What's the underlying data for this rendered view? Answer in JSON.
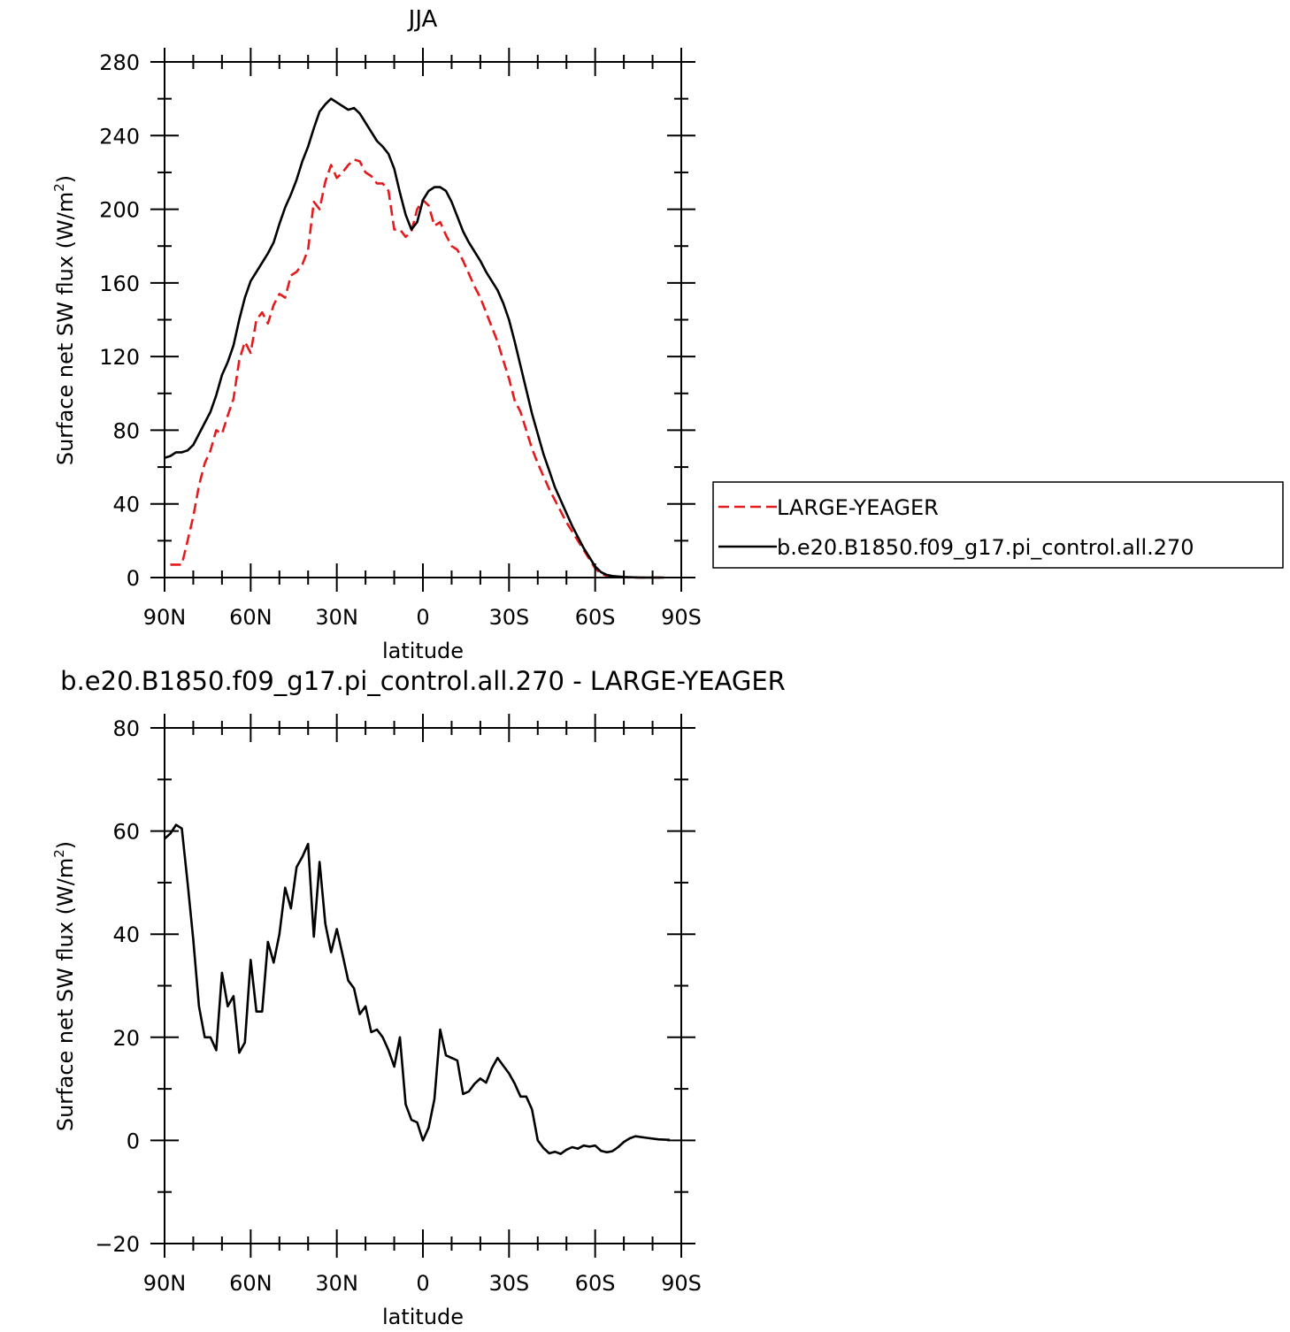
{
  "chart_data": [
    {
      "type": "line",
      "title": "JJA",
      "xlabel": "latitude",
      "ylabel": "Surface net SW flux (W/m",
      "ylabel_sup": "2",
      "ylabel_close": ")",
      "xlim": [
        -90,
        90
      ],
      "ylim": [
        0,
        280
      ],
      "x_ticks": [
        {
          "value": -90,
          "label": "90N"
        },
        {
          "value": -60,
          "label": "60N"
        },
        {
          "value": -30,
          "label": "30N"
        },
        {
          "value": 0,
          "label": "0"
        },
        {
          "value": 30,
          "label": "30S"
        },
        {
          "value": 60,
          "label": "60S"
        },
        {
          "value": 90,
          "label": "90S"
        }
      ],
      "y_ticks": [
        0,
        40,
        80,
        120,
        160,
        200,
        240,
        280
      ],
      "legend_placement": "right",
      "series": [
        {
          "name": "LARGE-YEAGER",
          "color": "#e41a1c",
          "dash": "dashed",
          "points": [
            [
              -88,
              7
            ],
            [
              -84,
              7
            ],
            [
              -82,
              20
            ],
            [
              -80,
              33
            ],
            [
              -78,
              50
            ],
            [
              -76,
              62
            ],
            [
              -74,
              69
            ],
            [
              -72,
              80
            ],
            [
              -70,
              78
            ],
            [
              -68,
              88
            ],
            [
              -66,
              97
            ],
            [
              -64,
              118
            ],
            [
              -62,
              128
            ],
            [
              -60,
              122
            ],
            [
              -58,
              140
            ],
            [
              -56,
              144
            ],
            [
              -54,
              138
            ],
            [
              -52,
              148
            ],
            [
              -50,
              154
            ],
            [
              -48,
              152
            ],
            [
              -46,
              164
            ],
            [
              -44,
              166
            ],
            [
              -42,
              170
            ],
            [
              -40,
              178
            ],
            [
              -38,
              204
            ],
            [
              -36,
              200
            ],
            [
              -34,
              215
            ],
            [
              -32,
              224
            ],
            [
              -30,
              217
            ],
            [
              -28,
              220
            ],
            [
              -26,
              224
            ],
            [
              -24,
              227
            ],
            [
              -22,
              226
            ],
            [
              -20,
              220
            ],
            [
              -18,
              218
            ],
            [
              -16,
              214
            ],
            [
              -14,
              214
            ],
            [
              -12,
              210
            ],
            [
              -10,
              189
            ],
            [
              -8,
              189
            ],
            [
              -6,
              185
            ],
            [
              -4,
              188
            ],
            [
              -2,
              200
            ],
            [
              0,
              205
            ],
            [
              2,
              202
            ],
            [
              4,
              191
            ],
            [
              6,
              193
            ],
            [
              8,
              186
            ],
            [
              10,
              180
            ],
            [
              12,
              178
            ],
            [
              14,
              172
            ],
            [
              16,
              165
            ],
            [
              18,
              158
            ],
            [
              20,
              152
            ],
            [
              22,
              144
            ],
            [
              24,
              136
            ],
            [
              26,
              128
            ],
            [
              28,
              118
            ],
            [
              30,
              108
            ],
            [
              32,
              96
            ],
            [
              34,
              90
            ],
            [
              36,
              80
            ],
            [
              38,
              70
            ],
            [
              40,
              62
            ],
            [
              42,
              55
            ],
            [
              44,
              48
            ],
            [
              46,
              42
            ],
            [
              48,
              36
            ],
            [
              50,
              30
            ],
            [
              52,
              25
            ],
            [
              54,
              20
            ],
            [
              56,
              15
            ],
            [
              58,
              10
            ],
            [
              60,
              5
            ],
            [
              62,
              2
            ],
            [
              64,
              1
            ],
            [
              68,
              0.5
            ],
            [
              72,
              0
            ],
            [
              78,
              0
            ],
            [
              84,
              0
            ]
          ]
        },
        {
          "name": "b.e20.B1850.f09_g17.pi_control.all.270",
          "color": "#000000",
          "dash": "solid",
          "points": [
            [
              -90,
              65
            ],
            [
              -88,
              66
            ],
            [
              -86,
              68
            ],
            [
              -84,
              68
            ],
            [
              -82,
              69
            ],
            [
              -80,
              72
            ],
            [
              -78,
              78
            ],
            [
              -76,
              84
            ],
            [
              -74,
              90
            ],
            [
              -72,
              99
            ],
            [
              -70,
              110
            ],
            [
              -68,
              117
            ],
            [
              -66,
              126
            ],
            [
              -64,
              140
            ],
            [
              -62,
              152
            ],
            [
              -60,
              161
            ],
            [
              -58,
              166
            ],
            [
              -56,
              171
            ],
            [
              -54,
              176
            ],
            [
              -52,
              182
            ],
            [
              -50,
              192
            ],
            [
              -48,
              201
            ],
            [
              -46,
              208
            ],
            [
              -44,
              216
            ],
            [
              -42,
              226
            ],
            [
              -40,
              234
            ],
            [
              -38,
              244
            ],
            [
              -36,
              253
            ],
            [
              -34,
              257
            ],
            [
              -32,
              260
            ],
            [
              -30,
              258
            ],
            [
              -28,
              256
            ],
            [
              -26,
              254
            ],
            [
              -24,
              255
            ],
            [
              -22,
              252
            ],
            [
              -20,
              247
            ],
            [
              -18,
              242
            ],
            [
              -16,
              237
            ],
            [
              -14,
              234
            ],
            [
              -12,
              230
            ],
            [
              -10,
              222
            ],
            [
              -8,
              209
            ],
            [
              -6,
              197
            ],
            [
              -4,
              189
            ],
            [
              -2,
              193
            ],
            [
              0,
              205
            ],
            [
              2,
              210
            ],
            [
              4,
              212
            ],
            [
              6,
              212
            ],
            [
              8,
              210
            ],
            [
              10,
              204
            ],
            [
              12,
              196
            ],
            [
              14,
              188
            ],
            [
              16,
              182
            ],
            [
              18,
              177
            ],
            [
              20,
              172
            ],
            [
              22,
              166
            ],
            [
              24,
              161
            ],
            [
              26,
              156
            ],
            [
              28,
              149
            ],
            [
              30,
              140
            ],
            [
              32,
              128
            ],
            [
              34,
              115
            ],
            [
              36,
              102
            ],
            [
              38,
              89
            ],
            [
              40,
              78
            ],
            [
              42,
              67
            ],
            [
              44,
              58
            ],
            [
              46,
              49
            ],
            [
              48,
              42
            ],
            [
              50,
              35
            ],
            [
              52,
              28
            ],
            [
              54,
              22
            ],
            [
              56,
              16
            ],
            [
              58,
              11
            ],
            [
              60,
              6
            ],
            [
              62,
              3
            ],
            [
              64,
              1.5
            ],
            [
              66,
              0.8
            ],
            [
              70,
              0.3
            ],
            [
              76,
              0
            ],
            [
              84,
              0
            ]
          ]
        }
      ]
    },
    {
      "type": "line",
      "title": "b.e20.B1850.f09_g17.pi_control.all.270 - LARGE-YEAGER",
      "xlabel": "latitude",
      "ylabel": "Surface net SW flux (W/m",
      "ylabel_sup": "2",
      "ylabel_close": ")",
      "xlim": [
        -90,
        90
      ],
      "ylim": [
        -20,
        80
      ],
      "x_ticks": [
        {
          "value": -90,
          "label": "90N"
        },
        {
          "value": -60,
          "label": "60N"
        },
        {
          "value": -30,
          "label": "30N"
        },
        {
          "value": 0,
          "label": "0"
        },
        {
          "value": 30,
          "label": "30S"
        },
        {
          "value": 60,
          "label": "60S"
        },
        {
          "value": 90,
          "label": "90S"
        }
      ],
      "y_ticks": [
        -20,
        0,
        20,
        40,
        60,
        80
      ],
      "series": [
        {
          "color": "#000000",
          "dash": "solid",
          "points": [
            [
              -90,
              58.5
            ],
            [
              -88,
              59.5
            ],
            [
              -86,
              61.2
            ],
            [
              -84,
              60.5
            ],
            [
              -82,
              50
            ],
            [
              -80,
              39
            ],
            [
              -78,
              26
            ],
            [
              -76,
              20
            ],
            [
              -74,
              20
            ],
            [
              -72,
              17.5
            ],
            [
              -70,
              32.5
            ],
            [
              -68,
              26
            ],
            [
              -66,
              28
            ],
            [
              -64,
              17
            ],
            [
              -62,
              19
            ],
            [
              -60,
              35
            ],
            [
              -58,
              25
            ],
            [
              -56,
              25
            ],
            [
              -54,
              38.5
            ],
            [
              -52,
              34.5
            ],
            [
              -50,
              40
            ],
            [
              -48,
              49
            ],
            [
              -46,
              45
            ],
            [
              -44,
              53
            ],
            [
              -42,
              55
            ],
            [
              -40,
              57.5
            ],
            [
              -38,
              39.5
            ],
            [
              -36,
              54
            ],
            [
              -34,
              42
            ],
            [
              -32,
              36.5
            ],
            [
              -30,
              41
            ],
            [
              -28,
              36
            ],
            [
              -26,
              31
            ],
            [
              -24,
              29.5
            ],
            [
              -22,
              24.5
            ],
            [
              -20,
              26
            ],
            [
              -18,
              21
            ],
            [
              -16,
              21.5
            ],
            [
              -14,
              20
            ],
            [
              -12,
              17.5
            ],
            [
              -10,
              14.3
            ],
            [
              -8,
              20
            ],
            [
              -6,
              7
            ],
            [
              -4,
              4
            ],
            [
              -2,
              3.5
            ],
            [
              0,
              0
            ],
            [
              2,
              2.5
            ],
            [
              4,
              8
            ],
            [
              6,
              21.5
            ],
            [
              8,
              16.5
            ],
            [
              10,
              16
            ],
            [
              12,
              15.5
            ],
            [
              14,
              9
            ],
            [
              16,
              9.5
            ],
            [
              18,
              11
            ],
            [
              20,
              12
            ],
            [
              22,
              11.2
            ],
            [
              24,
              14
            ],
            [
              26,
              16
            ],
            [
              28,
              14.5
            ],
            [
              30,
              13
            ],
            [
              32,
              11
            ],
            [
              34,
              8.5
            ],
            [
              36,
              8.5
            ],
            [
              38,
              6
            ],
            [
              40,
              0
            ],
            [
              42,
              -1.5
            ],
            [
              44,
              -2.5
            ],
            [
              46,
              -2.2
            ],
            [
              48,
              -2.6
            ],
            [
              50,
              -1.8
            ],
            [
              52,
              -1.3
            ],
            [
              54,
              -1.6
            ],
            [
              56,
              -1
            ],
            [
              58,
              -1.2
            ],
            [
              60,
              -1
            ],
            [
              62,
              -2
            ],
            [
              64,
              -2.3
            ],
            [
              66,
              -2.1
            ],
            [
              68,
              -1.3
            ],
            [
              70,
              -0.3
            ],
            [
              72,
              0.4
            ],
            [
              74,
              0.8
            ],
            [
              78,
              0.5
            ],
            [
              82,
              0.2
            ],
            [
              86,
              0.1
            ]
          ]
        }
      ]
    }
  ]
}
